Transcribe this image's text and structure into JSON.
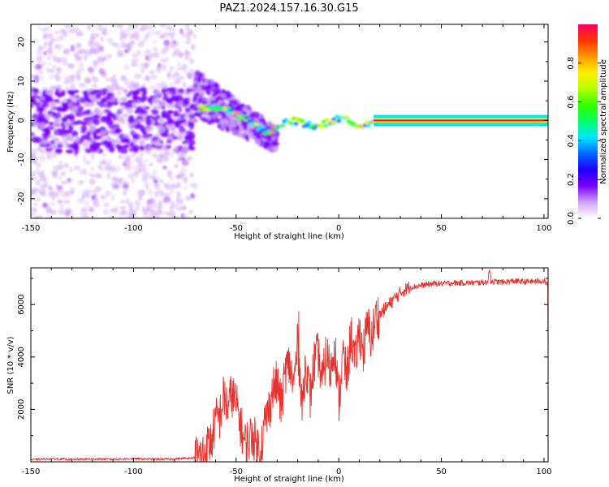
{
  "title": "PAZ1.2024.157.16.30.G15",
  "chart_data": [
    {
      "type": "heatmap",
      "xlabel": "Height of straight line (km)",
      "ylabel": "Frequency (Hz)",
      "xlim": [
        -150,
        102
      ],
      "ylim": [
        -25,
        24.5
      ],
      "xticks": [
        -150,
        -100,
        -50,
        0,
        50,
        100
      ],
      "yticks": [
        -20,
        -10,
        0,
        10,
        20
      ],
      "colorbar": {
        "label": "Normalized spectral amplitude",
        "range": [
          0.0,
          1.0
        ],
        "ticks": [
          "0.0",
          "0.2",
          "0.4",
          "0.6",
          "0.8"
        ],
        "colors": [
          "#ffffff",
          "#cfa3f7",
          "#7a00ff",
          "#2200ff",
          "#0066ff",
          "#00e5ff",
          "#00ff66",
          "#33ff00",
          "#b3ff00",
          "#ffee00",
          "#ff9900",
          "#ff3300",
          "#ff0066"
        ]
      },
      "regions": [
        {
          "x_range": [
            -150,
            -70
          ],
          "pattern": "noisy scattered",
          "peak_amplitude": 0.2
        },
        {
          "x_range": [
            -70,
            -30
          ],
          "pattern": "descending speckled signal",
          "peak_amplitude": 0.6
        },
        {
          "x_range": [
            -30,
            17
          ],
          "pattern": "converging line near 0 Hz",
          "peak_amplitude": 0.9
        },
        {
          "x_range": [
            17,
            102
          ],
          "pattern": "stable line at 0 Hz",
          "peak_amplitude": 1.0
        }
      ]
    },
    {
      "type": "line",
      "xlabel": "Height of straight line (km)",
      "ylabel": "SNR (10 * v/v)",
      "xlim": [
        -150,
        102
      ],
      "ylim": [
        0,
        7400
      ],
      "xticks": [
        -150,
        -100,
        -50,
        0,
        50,
        100
      ],
      "yticks": [
        2000,
        4000,
        6000
      ],
      "line_color": "#e8322d",
      "x": [
        -150,
        -140,
        -130,
        -120,
        -110,
        -100,
        -90,
        -80,
        -70,
        -66,
        -62,
        -60,
        -58,
        -56,
        -54,
        -52,
        -50,
        -48,
        -46,
        -44,
        -42,
        -40,
        -38,
        -36,
        -34,
        -32,
        -30,
        -28,
        -26,
        -24,
        -22,
        -20,
        -18,
        -16,
        -14,
        -12,
        -10,
        -8,
        -6,
        -4,
        -2,
        0,
        2,
        4,
        6,
        8,
        10,
        12,
        14,
        16,
        18,
        20,
        22,
        25,
        28,
        31,
        34,
        38,
        42,
        46,
        50,
        55,
        60,
        65,
        70,
        75,
        80,
        85,
        90,
        95,
        100,
        102
      ],
      "y": [
        80,
        120,
        90,
        110,
        100,
        120,
        100,
        110,
        160,
        300,
        800,
        1600,
        1700,
        2500,
        2100,
        2600,
        2200,
        1500,
        700,
        800,
        1100,
        600,
        500,
        1500,
        2000,
        2800,
        3000,
        2100,
        3500,
        3700,
        2900,
        4500,
        2000,
        3900,
        2400,
        3800,
        4100,
        3000,
        4200,
        3400,
        4600,
        2200,
        4100,
        3200,
        4900,
        3700,
        5000,
        4200,
        5200,
        4700,
        5500,
        5600,
        5800,
        6050,
        6300,
        6500,
        6650,
        6700,
        6750,
        6800,
        6800,
        6820,
        6830,
        6830,
        6840,
        6880,
        6850,
        6900,
        6870,
        6880,
        6900,
        6750
      ]
    }
  ]
}
